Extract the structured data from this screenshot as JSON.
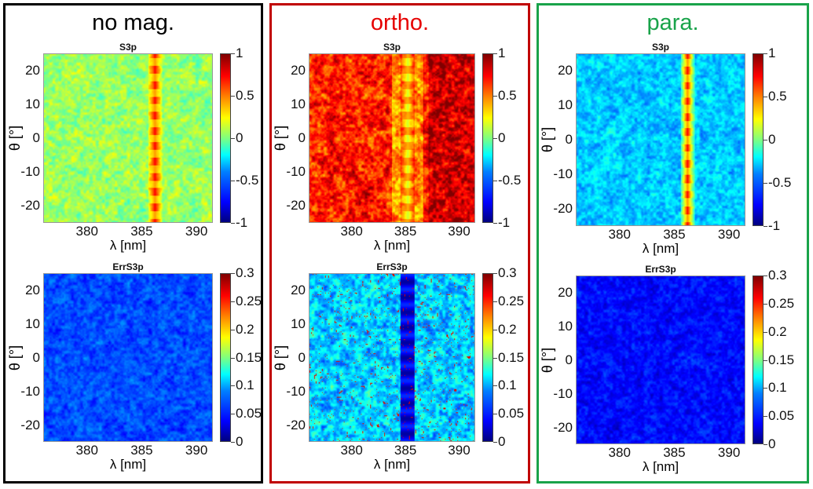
{
  "panels": [
    {
      "heading": "no mag.",
      "heading_color": "#000000",
      "frame_color": "#000000",
      "plots": [
        {
          "title": "S3p",
          "kind": "s3",
          "mood": "noMag"
        },
        {
          "title": "ErrS3p",
          "kind": "err",
          "mood": "noMag"
        }
      ]
    },
    {
      "heading": "ortho.",
      "heading_color": "#e60000",
      "frame_color": "#c00000",
      "plots": [
        {
          "title": "S3p",
          "kind": "s3",
          "mood": "ortho"
        },
        {
          "title": "ErrS3p",
          "kind": "err",
          "mood": "ortho"
        }
      ]
    },
    {
      "heading": "para.",
      "heading_color": "#19a34a",
      "frame_color": "#19a34a",
      "plots": [
        {
          "title": "S3p",
          "kind": "s3",
          "mood": "para"
        },
        {
          "title": "ErrS3p",
          "kind": "err",
          "mood": "para"
        }
      ]
    }
  ],
  "chart_data": [
    {
      "type": "heatmap",
      "panel": "no mag.",
      "title": "S3p",
      "xlabel": "λ [nm]",
      "ylabel": "θ [°]",
      "xlim": [
        376,
        391.5
      ],
      "ylim": [
        -25,
        25
      ],
      "x_ticks": [
        "380",
        "385",
        "390"
      ],
      "y_ticks": [
        "20",
        "10",
        "0",
        "-10",
        "-20"
      ],
      "colorbar": {
        "range": [
          -1,
          1
        ],
        "ticks": [
          "1",
          "0.5",
          "0",
          "-0.5",
          "-1"
        ],
        "colormap": "jet"
      },
      "typical_value": 0.05,
      "band_center_nm": 386.2
    },
    {
      "type": "heatmap",
      "panel": "no mag.",
      "title": "ErrS3p",
      "xlabel": "λ [nm]",
      "ylabel": "θ [°]",
      "xlim": [
        376,
        391.5
      ],
      "ylim": [
        -25,
        25
      ],
      "x_ticks": [
        "380",
        "385",
        "390"
      ],
      "y_ticks": [
        "20",
        "10",
        "0",
        "-10",
        "-20"
      ],
      "colorbar": {
        "range": [
          0,
          0.3
        ],
        "ticks": [
          "0.3",
          "0.25",
          "0.2",
          "0.15",
          "0.1",
          "0.05",
          "0"
        ],
        "colormap": "jet"
      },
      "typical_value": 0.06
    },
    {
      "type": "heatmap",
      "panel": "ortho.",
      "title": "S3p",
      "xlabel": "λ [nm]",
      "ylabel": "θ [°]",
      "xlim": [
        376,
        391.5
      ],
      "ylim": [
        -25,
        25
      ],
      "x_ticks": [
        "380",
        "385",
        "390"
      ],
      "y_ticks": [
        "20",
        "10",
        "0",
        "-10",
        "-20"
      ],
      "colorbar": {
        "range": [
          -1,
          1
        ],
        "ticks": [
          "1",
          "0.5",
          "0",
          "-0.5",
          "-1"
        ],
        "colormap": "jet"
      },
      "typical_value": 0.7,
      "band_center_nm": 385.2
    },
    {
      "type": "heatmap",
      "panel": "ortho.",
      "title": "ErrS3p",
      "xlabel": "λ [nm]",
      "ylabel": "θ [°]",
      "xlim": [
        376,
        391.5
      ],
      "ylim": [
        -25,
        25
      ],
      "x_ticks": [
        "380",
        "385",
        "390"
      ],
      "y_ticks": [
        "20",
        "10",
        "0",
        "-10",
        "-20"
      ],
      "colorbar": {
        "range": [
          0,
          0.3
        ],
        "ticks": [
          "0.3",
          "0.25",
          "0.2",
          "0.15",
          "0.1",
          "0.05",
          "0"
        ],
        "colormap": "jet"
      },
      "typical_value": 0.1
    },
    {
      "type": "heatmap",
      "panel": "para.",
      "title": "S3p",
      "xlabel": "λ [nm]",
      "ylabel": "θ [°]",
      "xlim": [
        376,
        391.5
      ],
      "ylim": [
        -25,
        25
      ],
      "x_ticks": [
        "380",
        "385",
        "390"
      ],
      "y_ticks": [
        "20",
        "10",
        "0",
        "-10",
        "-20"
      ],
      "colorbar": {
        "range": [
          -1,
          1
        ],
        "ticks": [
          "1",
          "0.5",
          "0",
          "-0.5",
          "-1"
        ],
        "colormap": "jet"
      },
      "typical_value": -0.35,
      "band_center_nm": 386.2
    },
    {
      "type": "heatmap",
      "panel": "para.",
      "title": "ErrS3p",
      "xlabel": "λ [nm]",
      "ylabel": "θ [°]",
      "xlim": [
        376,
        391.5
      ],
      "ylim": [
        -25,
        25
      ],
      "x_ticks": [
        "380",
        "385",
        "390"
      ],
      "y_ticks": [
        "20",
        "10",
        "0",
        "-10",
        "-20"
      ],
      "colorbar": {
        "range": [
          0,
          0.3
        ],
        "ticks": [
          "0.3",
          "0.25",
          "0.2",
          "0.15",
          "0.1",
          "0.05",
          "0"
        ],
        "colormap": "jet"
      },
      "typical_value": 0.04
    }
  ]
}
